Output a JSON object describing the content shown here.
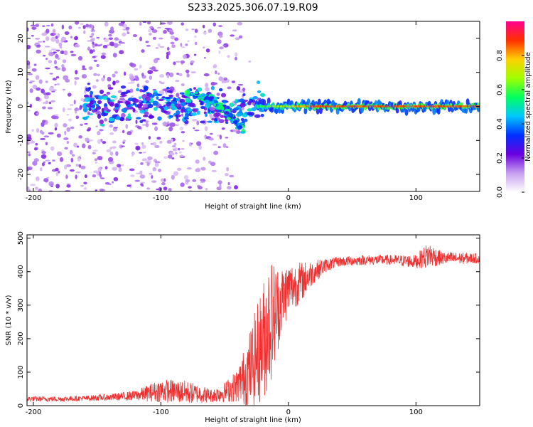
{
  "title": "S233.2025.306.07.19.R09",
  "chart_data": [
    {
      "type": "heatmap",
      "xlabel": "Height of straight line (km)",
      "ylabel": "Frequency (Hz)",
      "xlim": [
        -205,
        150
      ],
      "ylim": [
        -25,
        25
      ],
      "xticks": [
        "-200",
        "-100",
        "0",
        "100"
      ],
      "yticks": [
        "-20",
        "-10",
        "0",
        "10",
        "20"
      ],
      "colorbar": {
        "label": "Normalized spectral amplitude",
        "range": [
          0,
          1
        ],
        "ticks": [
          "0.0",
          "0.2",
          "0.4",
          "0.6",
          "0.8"
        ],
        "colors": [
          "#ffffff",
          "#c8a0f0",
          "#6a00e0",
          "#0030ff",
          "#00c8ff",
          "#00ff60",
          "#a0ff00",
          "#ffd000",
          "#ff3000",
          "#ff0090"
        ]
      },
      "features": {
        "carrier_line": {
          "x_start": -25,
          "x_end": 150,
          "frequency_hz": 0,
          "amplitude": 0.9
        },
        "descending_branch": {
          "x": [
            -80,
            -60,
            -45,
            -35
          ],
          "frequency_hz": [
            4,
            2,
            -3,
            -7
          ]
        },
        "noise_region_x": [
          -205,
          -30
        ]
      }
    },
    {
      "type": "line",
      "xlabel": "Height of straight line (km)",
      "ylabel": "SNR (10 * v/v)",
      "xlim": [
        -205,
        150
      ],
      "ylim": [
        0,
        510
      ],
      "xticks": [
        "-200",
        "-100",
        "0",
        "100"
      ],
      "yticks": [
        "0",
        "100",
        "200",
        "300",
        "400",
        "500"
      ],
      "series": [
        {
          "name": "SNR",
          "color": "#ee3030",
          "x": [
            -205,
            -180,
            -160,
            -140,
            -120,
            -100,
            -80,
            -60,
            -50,
            -40,
            -30,
            -20,
            -15,
            -10,
            -5,
            0,
            10,
            20,
            30,
            40,
            60,
            80,
            100,
            110,
            120,
            150
          ],
          "y": [
            20,
            20,
            22,
            25,
            30,
            45,
            40,
            30,
            40,
            60,
            110,
            190,
            250,
            280,
            320,
            350,
            370,
            400,
            420,
            430,
            435,
            435,
            430,
            450,
            440,
            440
          ],
          "spread": [
            8,
            8,
            8,
            10,
            15,
            35,
            35,
            20,
            30,
            50,
            120,
            180,
            200,
            150,
            100,
            80,
            60,
            35,
            20,
            15,
            15,
            15,
            20,
            40,
            20,
            15
          ]
        }
      ]
    }
  ]
}
